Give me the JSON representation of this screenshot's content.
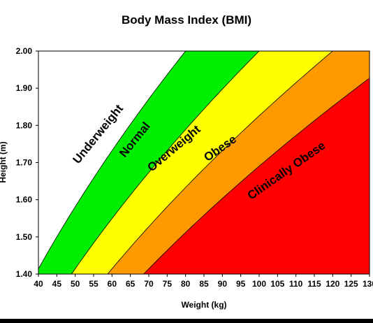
{
  "chart_data": {
    "type": "area",
    "title": "Body Mass Index (BMI)",
    "xlabel": "Weight (kg)",
    "ylabel": "Height (m)",
    "xlim": [
      40,
      130
    ],
    "ylim": [
      1.4,
      2.0
    ],
    "x_ticks": [
      "40",
      "45",
      "50",
      "55",
      "60",
      "65",
      "70",
      "75",
      "80",
      "85",
      "90",
      "95",
      "100",
      "105",
      "110",
      "115",
      "120",
      "125",
      "130"
    ],
    "y_ticks": [
      "1.40",
      "1.50",
      "1.60",
      "1.70",
      "1.80",
      "1.90",
      "2.00"
    ],
    "grid": false,
    "series": [
      {
        "name": "Underweight",
        "bmi_from": 0,
        "bmi_to": 20,
        "color": "#ffffff"
      },
      {
        "name": "Normal",
        "bmi_from": 20,
        "bmi_to": 25,
        "color": "#00ee00"
      },
      {
        "name": "Overweight",
        "bmi_from": 25,
        "bmi_to": 30,
        "color": "#ffff00"
      },
      {
        "name": "Obese",
        "bmi_from": 30,
        "bmi_to": 35,
        "color": "#ff9900"
      },
      {
        "name": "Clinically Obese",
        "bmi_from": 35,
        "bmi_to": 100,
        "color": "#ff0000"
      }
    ],
    "boundary_bmi_values": [
      20,
      25,
      30,
      35
    ]
  }
}
